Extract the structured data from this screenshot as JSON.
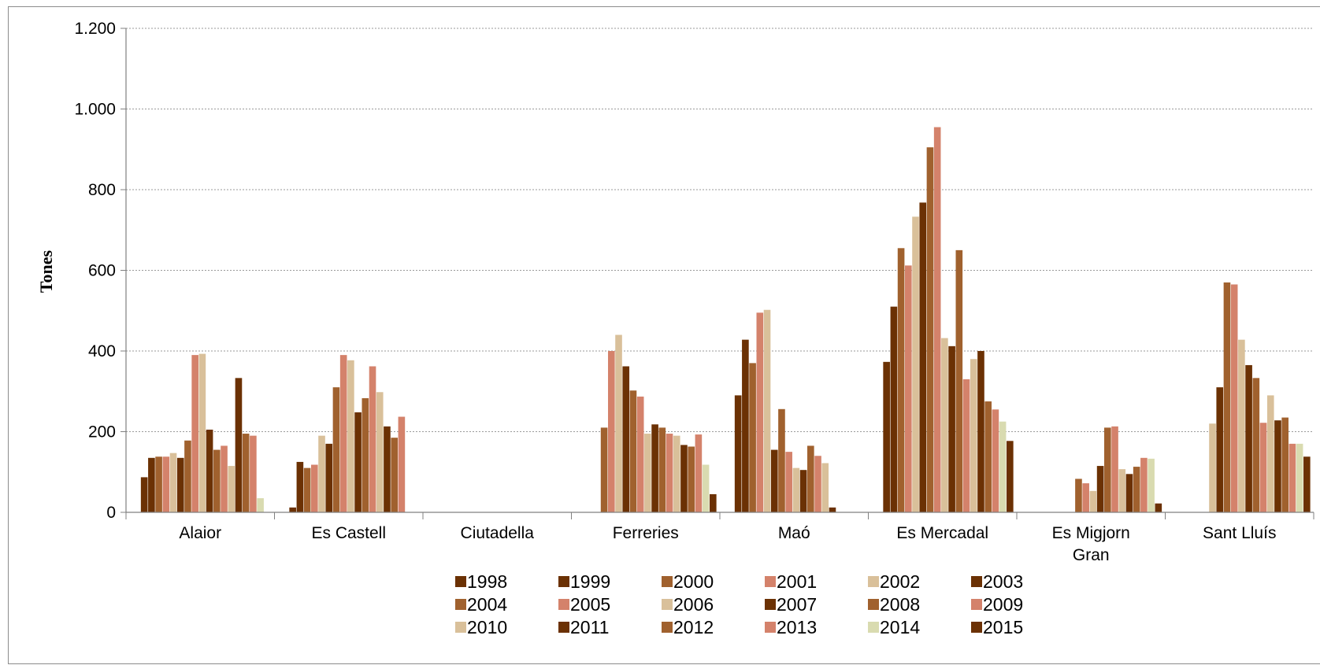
{
  "chart_data": {
    "type": "bar",
    "title": "",
    "xlabel": "",
    "ylabel": "Tones",
    "ylim": [
      0,
      1200
    ],
    "yticks": [
      0,
      200,
      400,
      600,
      800,
      1000,
      1200
    ],
    "ytick_labels": [
      "0",
      "200",
      "400",
      "600",
      "800",
      "1.000",
      "1.200"
    ],
    "grid": "horizontal dotted",
    "legend": "bottom, 6 columns",
    "categories": [
      "Alaior",
      "Es Castell",
      "Ciutadella",
      "Ferreries",
      "Maó",
      "Es Mercadal",
      "Es Migjorn Gran",
      "Sant Lluís"
    ],
    "category_lines": [
      [
        "Alaior"
      ],
      [
        "Es Castell"
      ],
      [
        "Ciutadella"
      ],
      [
        "Ferreries"
      ],
      [
        "Maó"
      ],
      [
        "Es Mercadal"
      ],
      [
        "Es Migjorn",
        "Gran"
      ],
      [
        "Sant Lluís"
      ]
    ],
    "series": [
      {
        "name": "1998",
        "color": "#6b3104",
        "values": [
          87,
          12,
          0,
          0,
          290,
          373,
          0,
          0
        ]
      },
      {
        "name": "1999",
        "color": "#6b3104",
        "values": [
          135,
          125,
          0,
          0,
          428,
          510,
          0,
          0
        ]
      },
      {
        "name": "2000",
        "color": "#a0612e",
        "values": [
          138,
          110,
          0,
          210,
          370,
          655,
          0,
          0
        ]
      },
      {
        "name": "2001",
        "color": "#d4826b",
        "values": [
          138,
          118,
          0,
          400,
          495,
          612,
          0,
          0
        ]
      },
      {
        "name": "2002",
        "color": "#d9c09a",
        "values": [
          147,
          190,
          0,
          440,
          502,
          733,
          0,
          220
        ]
      },
      {
        "name": "2003",
        "color": "#6b3104",
        "values": [
          135,
          170,
          0,
          362,
          155,
          768,
          0,
          310
        ]
      },
      {
        "name": "2004",
        "color": "#a0612e",
        "values": [
          178,
          310,
          0,
          302,
          256,
          905,
          83,
          570
        ]
      },
      {
        "name": "2005",
        "color": "#d4826b",
        "values": [
          390,
          390,
          0,
          287,
          150,
          955,
          72,
          565
        ]
      },
      {
        "name": "2006",
        "color": "#d9c09a",
        "values": [
          393,
          377,
          0,
          195,
          110,
          432,
          53,
          428
        ]
      },
      {
        "name": "2007",
        "color": "#6b3104",
        "values": [
          205,
          248,
          0,
          218,
          105,
          412,
          115,
          365
        ]
      },
      {
        "name": "2008",
        "color": "#a0612e",
        "values": [
          155,
          283,
          0,
          210,
          165,
          650,
          210,
          333
        ]
      },
      {
        "name": "2009",
        "color": "#d4826b",
        "values": [
          165,
          362,
          0,
          195,
          140,
          330,
          213,
          222
        ]
      },
      {
        "name": "2010",
        "color": "#d9c09a",
        "values": [
          115,
          298,
          0,
          190,
          122,
          380,
          107,
          290
        ]
      },
      {
        "name": "2011",
        "color": "#6b3104",
        "values": [
          333,
          213,
          0,
          167,
          12,
          400,
          95,
          228
        ]
      },
      {
        "name": "2012",
        "color": "#a0612e",
        "values": [
          195,
          185,
          0,
          163,
          0,
          275,
          113,
          235
        ]
      },
      {
        "name": "2013",
        "color": "#d4826b",
        "values": [
          190,
          237,
          0,
          193,
          0,
          255,
          135,
          170
        ]
      },
      {
        "name": "2014",
        "color": "#d9dbb0",
        "values": [
          35,
          0,
          0,
          118,
          0,
          225,
          133,
          170
        ]
      },
      {
        "name": "2015",
        "color": "#6b3104",
        "values": [
          0,
          0,
          0,
          45,
          0,
          177,
          22,
          138
        ]
      }
    ]
  }
}
